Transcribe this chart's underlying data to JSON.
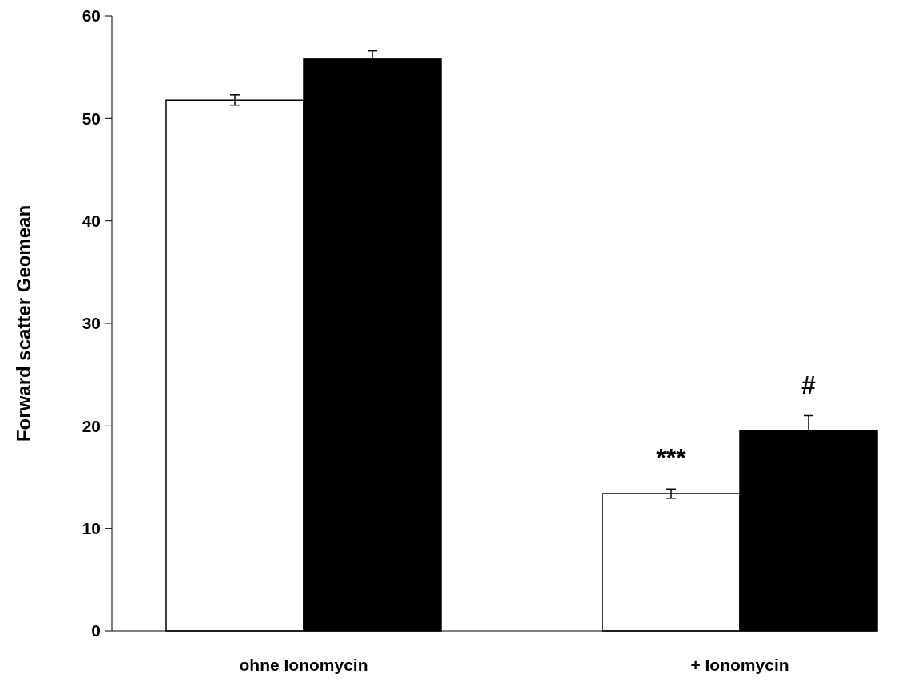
{
  "chart_data": {
    "type": "bar",
    "ylabel": "Forward scatter Geomean",
    "categories": [
      "ohne Ionomycin",
      "+ Ionomycin"
    ],
    "series": [
      {
        "color": "#ffffff",
        "values": [
          51.8,
          13.4
        ],
        "errors": [
          0.5,
          0.45
        ]
      },
      {
        "color": "#000000",
        "values": [
          55.8,
          19.5
        ],
        "errors": [
          0.8,
          1.5
        ]
      }
    ],
    "ylim": [
      0,
      60
    ],
    "yticks": [
      0,
      10,
      20,
      30,
      40,
      50,
      60
    ],
    "grid": false,
    "annotations": [
      {
        "text": "***",
        "x": "+ Ionomycin",
        "y": 13.4
      },
      {
        "text": "#",
        "x": "+ Ionomycin",
        "y": 19.5
      }
    ]
  }
}
